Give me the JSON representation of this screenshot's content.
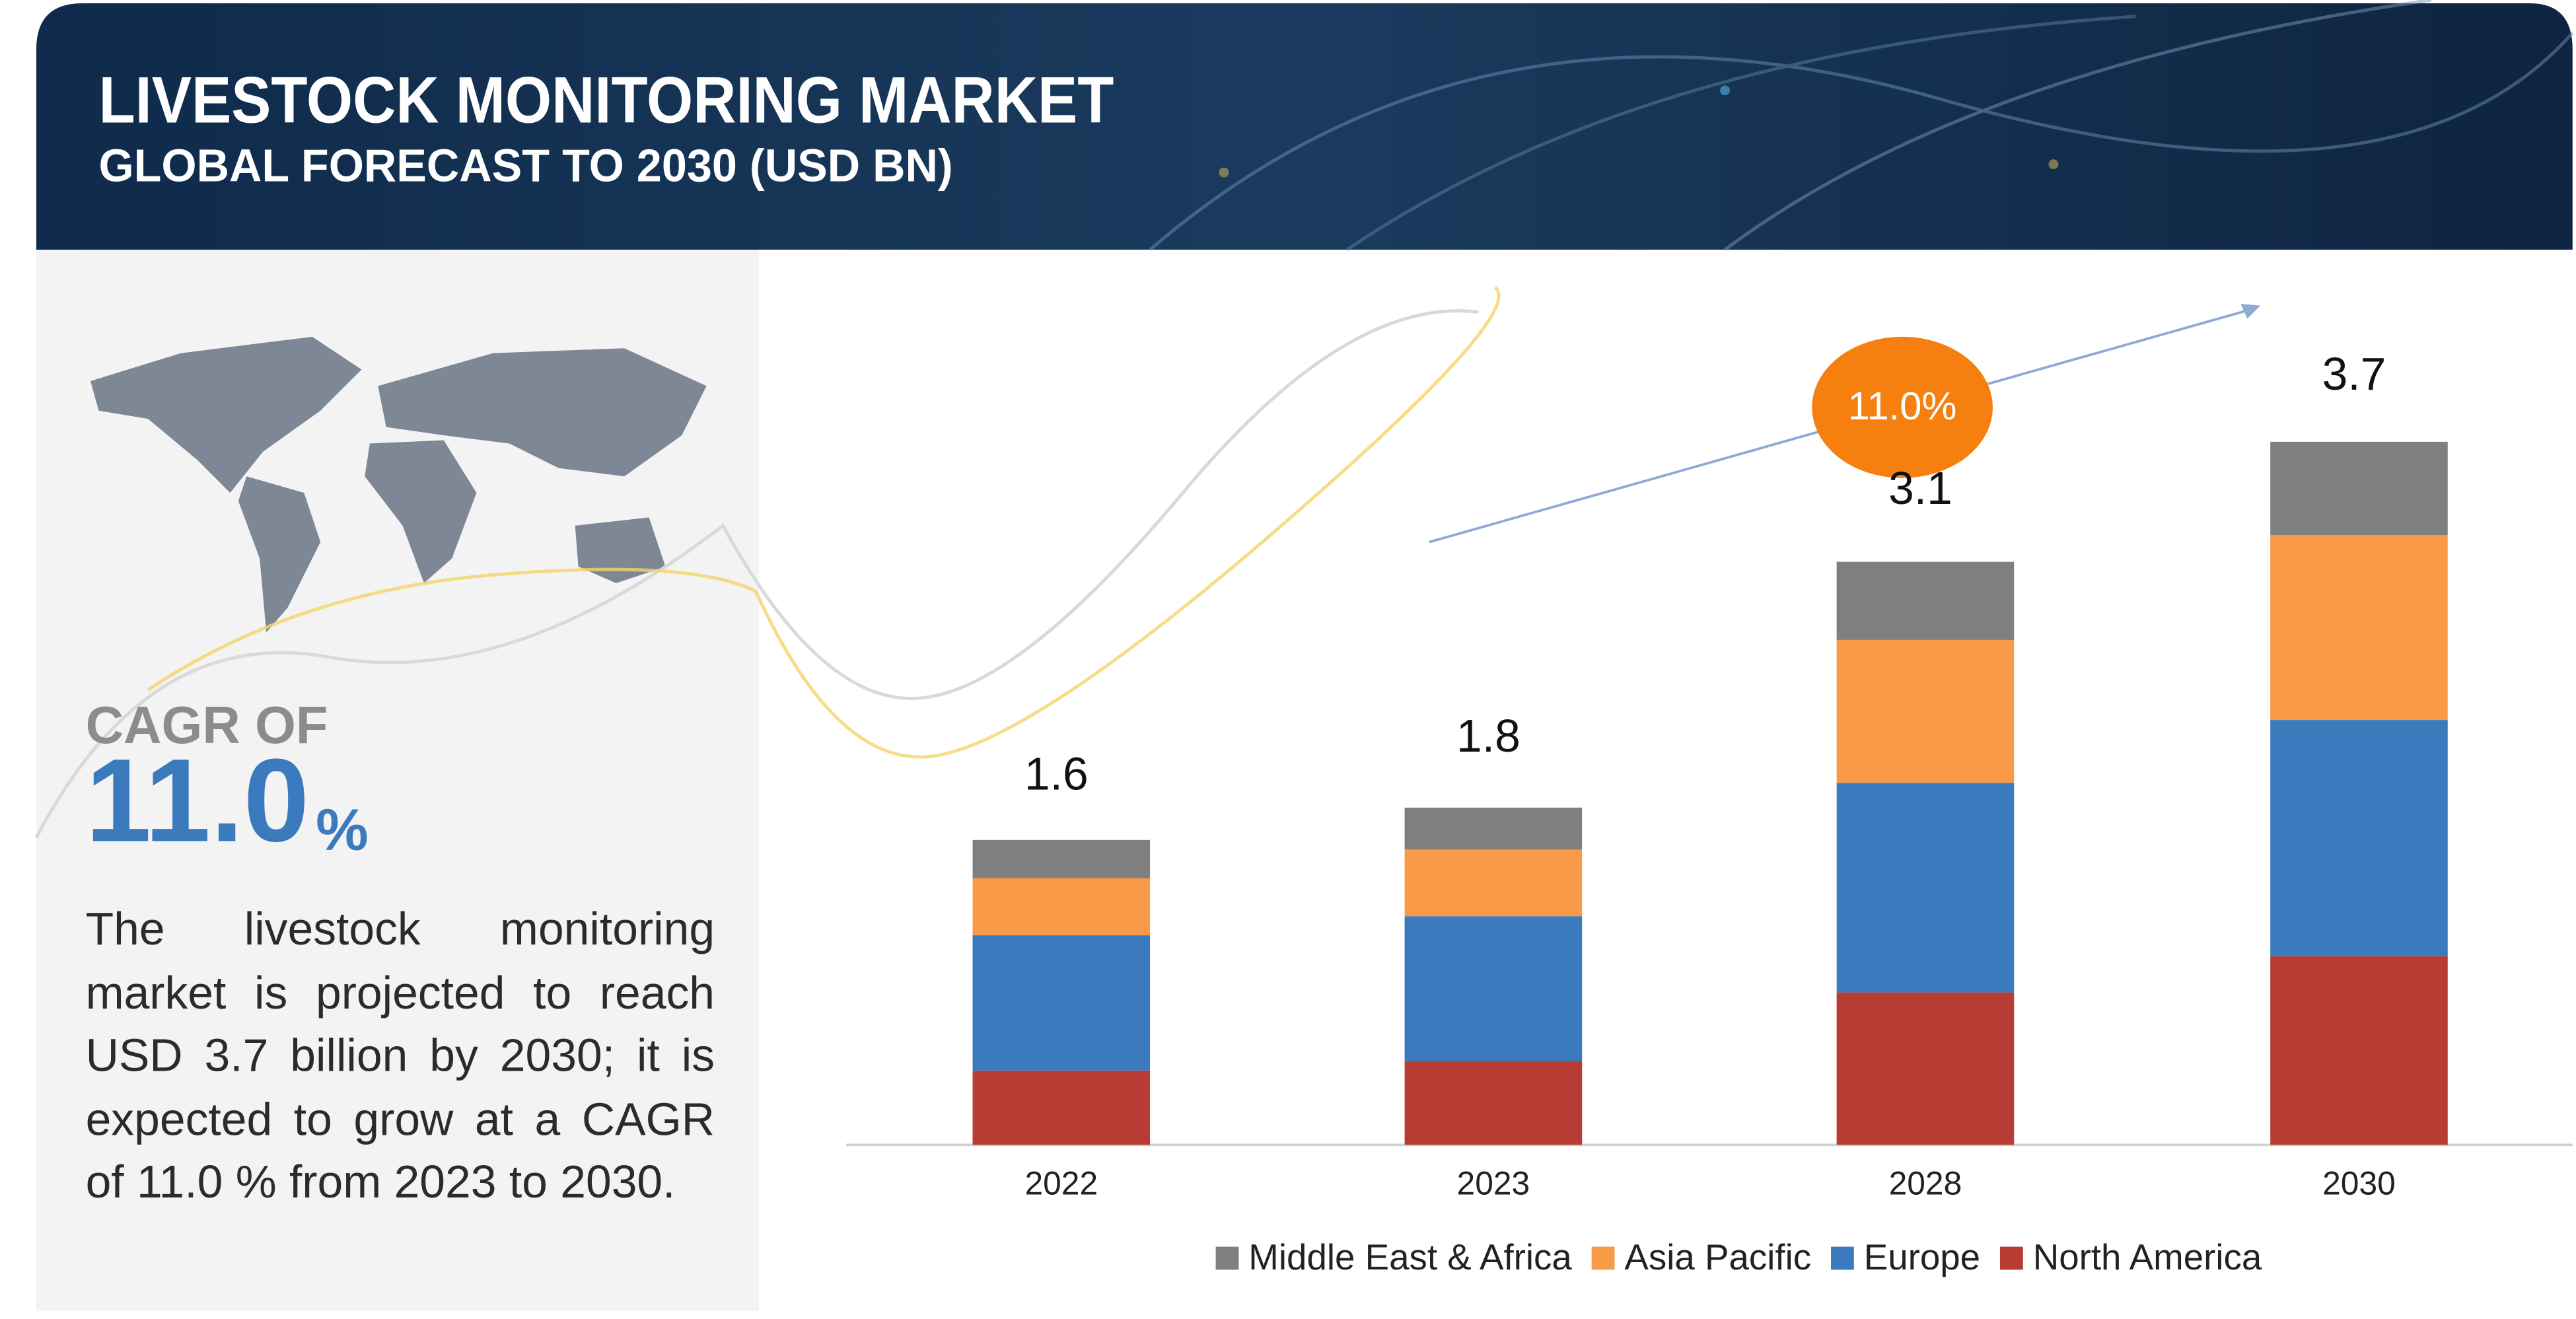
{
  "chart_data": {
    "type": "bar",
    "stacked": true,
    "title": "LIVESTOCK MONITORING MARKET",
    "subtitle": "GLOBAL FORECAST TO 2030 (USD BN)",
    "categories": [
      "2022",
      "2023",
      "2028",
      "2030"
    ],
    "series": [
      {
        "name": "Middle East & Africa",
        "color": "#7f7f7f",
        "values": [
          0.2,
          0.22,
          0.41,
          0.49
        ]
      },
      {
        "name": "Asia Pacific",
        "color": "#f99a48",
        "values": [
          0.3,
          0.35,
          0.75,
          0.97
        ]
      },
      {
        "name": "Europe",
        "color": "#3b7bbd",
        "values": [
          0.71,
          0.76,
          1.1,
          1.24
        ]
      },
      {
        "name": "North America",
        "color": "#b83c34",
        "values": [
          0.39,
          0.44,
          0.8,
          0.99
        ]
      }
    ],
    "totals": [
      1.6,
      1.8,
      3.1,
      3.7
    ],
    "cagr_badge": "11.0%",
    "legend": "bottom"
  },
  "side_panel": {
    "cagr_label": "CAGR OF",
    "cagr_value": "11.0",
    "cagr_unit": "%",
    "description": "The livestock monitoring market is projected to reach USD 3.7 billion by 2030; it is expected to grow at a CAGR of 11.0 % from 2023 to 2030."
  }
}
